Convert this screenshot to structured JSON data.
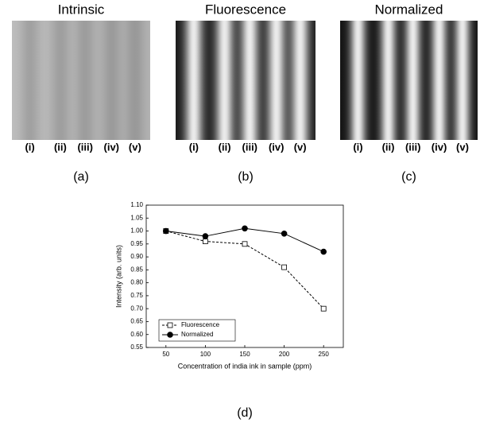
{
  "panels": [
    {
      "title": "Intrinsic",
      "labels": [
        "(i)",
        "(ii)",
        "(iii)",
        "(iv)",
        "(v)"
      ],
      "caption": "(a)"
    },
    {
      "title": "Fluorescence",
      "labels": [
        "(i)",
        "(ii)",
        "(iii)",
        "(iv)",
        "(v)"
      ],
      "caption": "(b)"
    },
    {
      "title": "Normalized",
      "labels": [
        "(i)",
        "(ii)",
        "(iii)",
        "(iv)",
        "(v)"
      ],
      "caption": "(c)"
    }
  ],
  "chart_data": {
    "type": "line",
    "caption": "(d)",
    "x_label": "Concentration of india ink in sample (ppm)",
    "y_label": "Intensity (arb. units)",
    "x": [
      50,
      100,
      150,
      200,
      250
    ],
    "xlim": [
      25,
      275
    ],
    "xticks": [
      50,
      100,
      150,
      200,
      250
    ],
    "ylim": [
      0.55,
      1.1
    ],
    "yticks": [
      0.55,
      {
        "value": 0.6,
        "label": "0.60"
      },
      0.65,
      {
        "value": 0.7,
        "label": "0.70"
      },
      0.75,
      {
        "value": 0.8,
        "label": "0.80"
      },
      0.85,
      {
        "value": 0.9,
        "label": "0.90"
      },
      0.95,
      {
        "value": 1.0,
        "label": "1.00"
      },
      1.05,
      {
        "value": 1.1,
        "label": "1.10"
      }
    ],
    "legend": "lower-left",
    "series": [
      {
        "name": "Fluorescence",
        "color": "#000000",
        "dash": "dashed",
        "marker": "open-square",
        "values": [
          1.0,
          0.96,
          0.95,
          0.86,
          0.7
        ]
      },
      {
        "name": "Normalized",
        "color": "#000000",
        "dash": "solid",
        "marker": "filled-circle",
        "values": [
          1.0,
          0.98,
          1.01,
          0.99,
          0.92
        ]
      }
    ]
  }
}
